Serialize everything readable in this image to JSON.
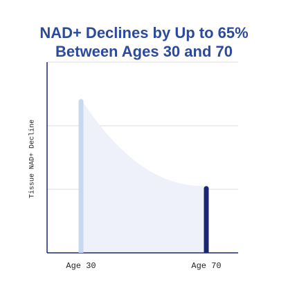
{
  "chart_data": {
    "type": "bar",
    "title": "NAD+ Declines by Up to 65% Between Ages 30 and 70",
    "y_label": "Tissue NAD+ Decline",
    "categories": [
      "Age 30",
      "Age 70"
    ],
    "values": [
      2.42,
      1.05
    ],
    "colors": [
      "#c7d8f0",
      "#1b2470"
    ],
    "ylim": [
      0,
      3
    ],
    "yticks": [
      1,
      2,
      3
    ],
    "grid": true
  }
}
